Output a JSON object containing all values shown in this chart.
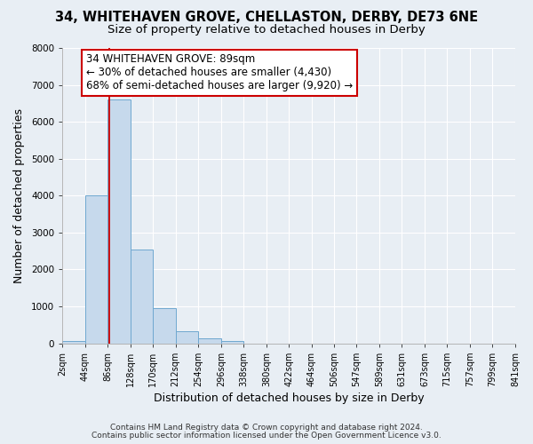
{
  "title": "34, WHITEHAVEN GROVE, CHELLASTON, DERBY, DE73 6NE",
  "subtitle": "Size of property relative to detached houses in Derby",
  "xlabel": "Distribution of detached houses by size in Derby",
  "ylabel": "Number of detached properties",
  "bin_edges": [
    2,
    44,
    86,
    128,
    170,
    212,
    254,
    296,
    338,
    380,
    422,
    464,
    506,
    547,
    589,
    631,
    673,
    715,
    757,
    799,
    841
  ],
  "counts": [
    60,
    4000,
    6600,
    2550,
    950,
    330,
    125,
    60,
    0,
    0,
    0,
    0,
    0,
    0,
    0,
    0,
    0,
    0,
    0,
    0
  ],
  "bar_color": "#c6d9ec",
  "bar_edge_color": "#6fa8d0",
  "property_size": 89,
  "vline_color": "#cc0000",
  "annotation_line1": "34 WHITEHAVEN GROVE: 89sqm",
  "annotation_line2": "← 30% of detached houses are smaller (4,430)",
  "annotation_line3": "68% of semi-detached houses are larger (9,920) →",
  "annotation_box_color": "#ffffff",
  "annotation_box_edge_color": "#cc0000",
  "ylim": [
    0,
    8000
  ],
  "background_color": "#e8eef4",
  "plot_bg_color": "#e8eef4",
  "tick_labels": [
    "2sqm",
    "44sqm",
    "86sqm",
    "128sqm",
    "170sqm",
    "212sqm",
    "254sqm",
    "296sqm",
    "338sqm",
    "380sqm",
    "422sqm",
    "464sqm",
    "506sqm",
    "547sqm",
    "589sqm",
    "631sqm",
    "673sqm",
    "715sqm",
    "757sqm",
    "799sqm",
    "841sqm"
  ],
  "footer_line1": "Contains HM Land Registry data © Crown copyright and database right 2024.",
  "footer_line2": "Contains public sector information licensed under the Open Government Licence v3.0.",
  "grid_color": "#ffffff",
  "title_fontsize": 10.5,
  "subtitle_fontsize": 9.5,
  "axis_label_fontsize": 9,
  "tick_fontsize": 7,
  "annotation_fontsize": 8.5,
  "footer_fontsize": 6.5
}
